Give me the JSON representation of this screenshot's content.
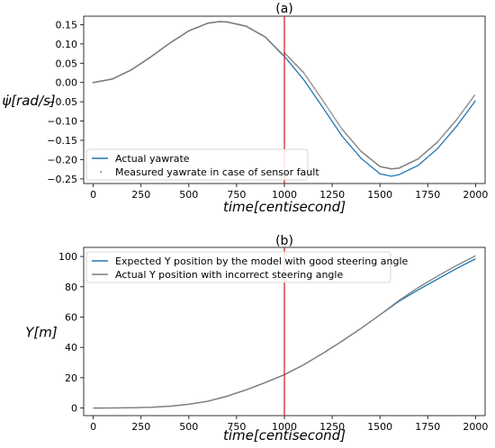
{
  "chart_data": [
    {
      "type": "line",
      "title": "(a)",
      "xlabel": "time[centisecond]",
      "ylabel": "ψ̇[rad/s]",
      "xlim": [
        -50,
        2050
      ],
      "ylim": [
        -0.262,
        0.172
      ],
      "xticks": [
        0,
        250,
        500,
        750,
        1000,
        1250,
        1500,
        1750,
        2000
      ],
      "yticks": [
        0.15,
        0.1,
        0.05,
        0.0,
        -0.05,
        -0.1,
        -0.15,
        -0.2,
        -0.25
      ],
      "ytick_labels": [
        "0.15",
        "0.10",
        "0.05",
        "0.00",
        "−0.05",
        "−0.10",
        "−0.15",
        "−0.20",
        "−0.25"
      ],
      "vline_x": 1000,
      "vline_color": "#d62728",
      "legend_position": "lower-left",
      "series": [
        {
          "name": "Actual yawrate",
          "style": "line",
          "color": "#1f77b4",
          "x": [
            0,
            100,
            200,
            300,
            400,
            500,
            600,
            660,
            700,
            800,
            900,
            1000,
            1100,
            1200,
            1300,
            1400,
            1500,
            1560,
            1600,
            1700,
            1800,
            1900,
            2000
          ],
          "values": [
            0.0,
            0.009,
            0.033,
            0.066,
            0.102,
            0.134,
            0.154,
            0.158,
            0.157,
            0.146,
            0.118,
            0.068,
            0.008,
            -0.064,
            -0.138,
            -0.196,
            -0.237,
            -0.243,
            -0.239,
            -0.215,
            -0.172,
            -0.114,
            -0.047
          ]
        },
        {
          "name": "Measured yawrate in case of sensor fault",
          "style": "markers",
          "color": "#7f7f7f",
          "x": [
            0,
            100,
            200,
            300,
            400,
            500,
            600,
            660,
            700,
            800,
            900,
            995,
            1000,
            1100,
            1200,
            1300,
            1400,
            1500,
            1560,
            1600,
            1700,
            1800,
            1900,
            2000
          ],
          "values": [
            0.0,
            0.009,
            0.033,
            0.066,
            0.102,
            0.134,
            0.154,
            0.158,
            0.157,
            0.146,
            0.118,
            0.069,
            0.077,
            0.026,
            -0.046,
            -0.12,
            -0.178,
            -0.218,
            -0.224,
            -0.222,
            -0.198,
            -0.155,
            -0.097,
            -0.03
          ]
        }
      ]
    },
    {
      "type": "line",
      "title": "(b)",
      "xlabel": "time[centisecond]",
      "ylabel": "Y[m]",
      "xlim": [
        -50,
        2050
      ],
      "ylim": [
        -5,
        106
      ],
      "xticks": [
        0,
        250,
        500,
        750,
        1000,
        1250,
        1500,
        1750,
        2000
      ],
      "yticks": [
        0,
        20,
        40,
        60,
        80,
        100
      ],
      "ytick_labels": [
        "0",
        "20",
        "40",
        "60",
        "80",
        "100"
      ],
      "vline_x": 1000,
      "vline_color": "#d62728",
      "legend_position": "upper-left",
      "series": [
        {
          "name": "Expected Y position by the model with good steering angle",
          "color": "#1f77b4",
          "x": [
            0,
            100,
            200,
            300,
            400,
            500,
            600,
            700,
            800,
            900,
            1000,
            1100,
            1200,
            1300,
            1400,
            1500,
            1600,
            1700,
            1800,
            1900,
            2000
          ],
          "values": [
            0.0,
            0.05,
            0.2,
            0.5,
            1.2,
            2.5,
            4.5,
            7.8,
            12.0,
            16.8,
            22.0,
            28.5,
            36.0,
            44.0,
            52.5,
            61.5,
            70.5,
            78.0,
            85.0,
            92.0,
            98.5
          ]
        },
        {
          "name": "Actual Y position with incorrect steering angle",
          "color": "#7f7f7f",
          "x": [
            0,
            100,
            200,
            300,
            400,
            500,
            600,
            700,
            800,
            900,
            1000,
            1100,
            1200,
            1300,
            1400,
            1500,
            1600,
            1700,
            1800,
            1900,
            2000
          ],
          "values": [
            0.0,
            0.05,
            0.2,
            0.5,
            1.2,
            2.5,
            4.5,
            7.8,
            12.0,
            16.8,
            22.0,
            28.5,
            36.0,
            44.0,
            52.5,
            61.5,
            71.0,
            79.5,
            87.0,
            94.0,
            100.5
          ]
        }
      ]
    }
  ]
}
